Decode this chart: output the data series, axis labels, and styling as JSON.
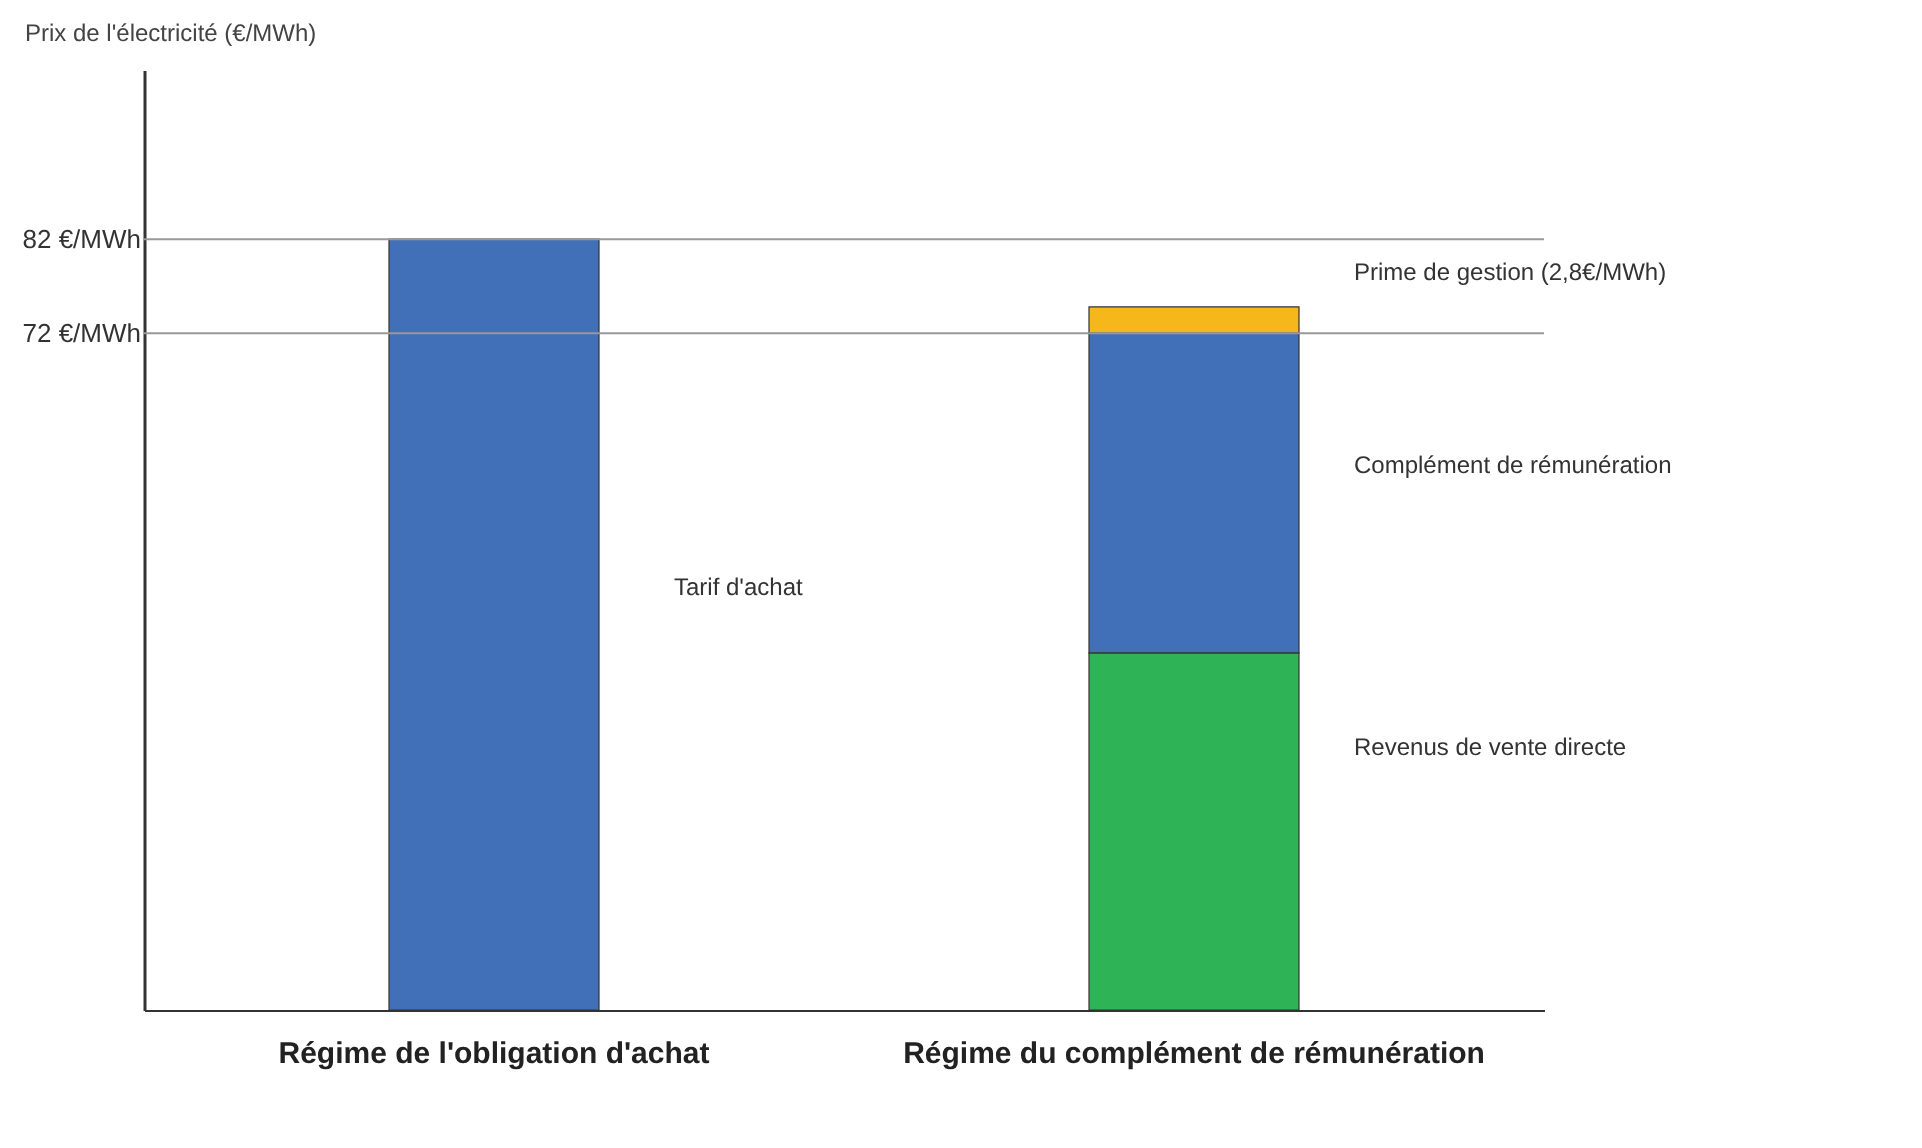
{
  "chart_data": {
    "type": "bar",
    "stacked": true,
    "ylabel": "Prix de l'électricité (€/MWh)",
    "categories": [
      "Régime de l'obligation d'achat",
      "Régime du complément de rémunération"
    ],
    "series": [
      {
        "color": "#2eb356",
        "values": [
          null,
          38
        ]
      },
      {
        "color": "#4270b8",
        "values": [
          82,
          34
        ]
      },
      {
        "color": "#f5b71a",
        "values": [
          null,
          2.8
        ]
      }
    ],
    "ylim": [
      0,
      100
    ],
    "yticks": [
      {
        "value": 72,
        "label": "72 €/MWh"
      },
      {
        "value": 82,
        "label": "82 €/MWh"
      }
    ],
    "ref_lines": [
      {
        "axis": "y",
        "value": 82,
        "color": "#999999"
      },
      {
        "axis": "y",
        "value": 72,
        "color": "#999999"
      }
    ],
    "annotations": [
      "Tarif d'achat",
      "Prime de gestion (2,8€/MWh)",
      "Complément de rémunération",
      "Revenus de vente directe"
    ],
    "grid": false,
    "legend": false
  }
}
